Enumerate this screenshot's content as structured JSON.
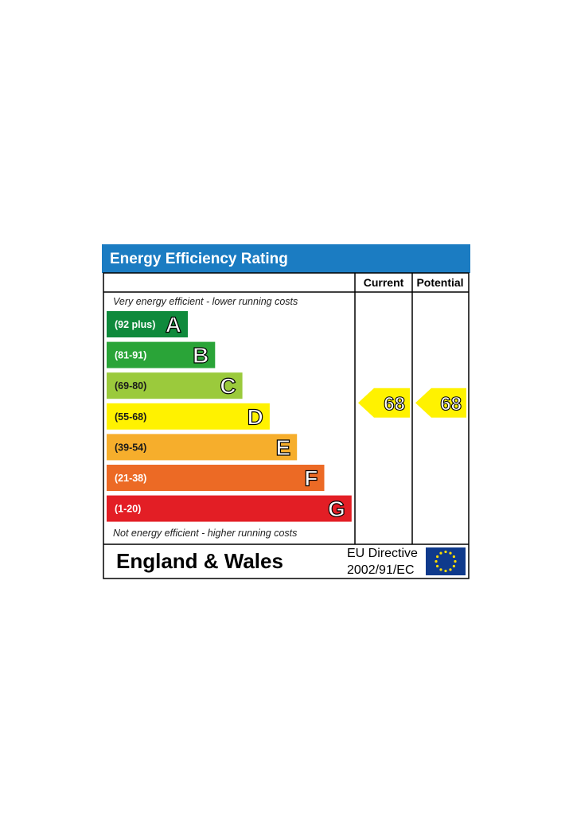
{
  "chart_data": {
    "type": "bar",
    "title": "Energy Efficiency Rating",
    "categories": [
      "A",
      "B",
      "C",
      "D",
      "E",
      "F",
      "G"
    ],
    "bands": [
      {
        "letter": "A",
        "range": "(92 plus)",
        "color": "#0f8a3c"
      },
      {
        "letter": "B",
        "range": "(81-91)",
        "color": "#2aa438"
      },
      {
        "letter": "C",
        "range": "(69-80)",
        "color": "#9bca3c"
      },
      {
        "letter": "D",
        "range": "(55-68)",
        "color": "#fff200"
      },
      {
        "letter": "E",
        "range": "(39-54)",
        "color": "#f6ae2c"
      },
      {
        "letter": "F",
        "range": "(21-38)",
        "color": "#ec6a25"
      },
      {
        "letter": "G",
        "range": "(1-20)",
        "color": "#e31e25"
      }
    ],
    "columns": {
      "current": "Current",
      "potential": "Potential"
    },
    "series": [
      {
        "name": "Current",
        "value": 68,
        "band": "D"
      },
      {
        "name": "Potential",
        "value": 68,
        "band": "D"
      }
    ],
    "top_note": "Very energy efficient - lower running costs",
    "bottom_note": "Not energy efficient - higher running costs",
    "footer": {
      "region": "England & Wales",
      "directive_line1": "EU Directive",
      "directive_line2": "2002/91/EC"
    },
    "colors": {
      "header_bg": "#1b7cc2",
      "indicator": "#fff200",
      "eu_flag": "#0f3a8c",
      "eu_stars": "#ffdd00"
    }
  }
}
